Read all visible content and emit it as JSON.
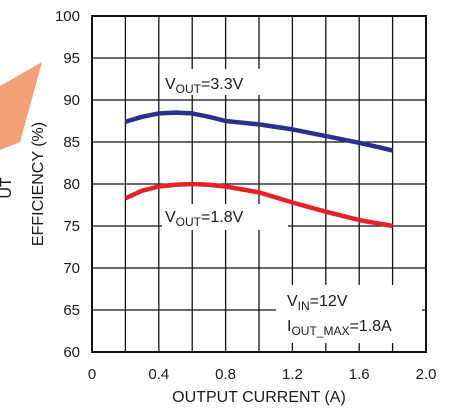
{
  "chart_data": {
    "type": "line",
    "xlabel": "OUTPUT CURRENT (A)",
    "ylabel": "EFFICIENCY (%)",
    "xlim": [
      0,
      2.0
    ],
    "ylim": [
      60,
      100
    ],
    "x_ticks": [
      "0",
      "0.4",
      "0.8",
      "1.2",
      "1.6",
      "2.0"
    ],
    "y_ticks": [
      "60",
      "65",
      "70",
      "75",
      "80",
      "85",
      "90",
      "95",
      "100"
    ],
    "grid": true,
    "series": [
      {
        "name_main": "V",
        "name_sub": "OUT",
        "name_rest": "=3.3V",
        "color": "#2b2f8f",
        "points": [
          [
            0.2,
            87.4
          ],
          [
            0.3,
            88.0
          ],
          [
            0.4,
            88.4
          ],
          [
            0.5,
            88.5
          ],
          [
            0.6,
            88.4
          ],
          [
            0.7,
            88.0
          ],
          [
            0.8,
            87.5
          ],
          [
            1.0,
            87.1
          ],
          [
            1.2,
            86.5
          ],
          [
            1.4,
            85.7
          ],
          [
            1.6,
            84.9
          ],
          [
            1.8,
            84.0
          ]
        ]
      },
      {
        "name_main": "V",
        "name_sub": "OUT",
        "name_rest": "=1.8V",
        "color": "#e8202a",
        "points": [
          [
            0.2,
            78.3
          ],
          [
            0.3,
            79.2
          ],
          [
            0.4,
            79.7
          ],
          [
            0.5,
            79.9
          ],
          [
            0.6,
            80.0
          ],
          [
            0.7,
            79.9
          ],
          [
            0.8,
            79.7
          ],
          [
            1.0,
            79.0
          ],
          [
            1.2,
            77.8
          ],
          [
            1.4,
            76.7
          ],
          [
            1.6,
            75.7
          ],
          [
            1.8,
            75.0
          ]
        ]
      }
    ],
    "conditions": {
      "line1_main": "V",
      "line1_sub": "IN",
      "line1_rest": "=12V",
      "line2_main": "I",
      "line2_sub": "OUT_MAX",
      "line2_rest": "=1.8A"
    },
    "side_text_fragment": "UT"
  }
}
